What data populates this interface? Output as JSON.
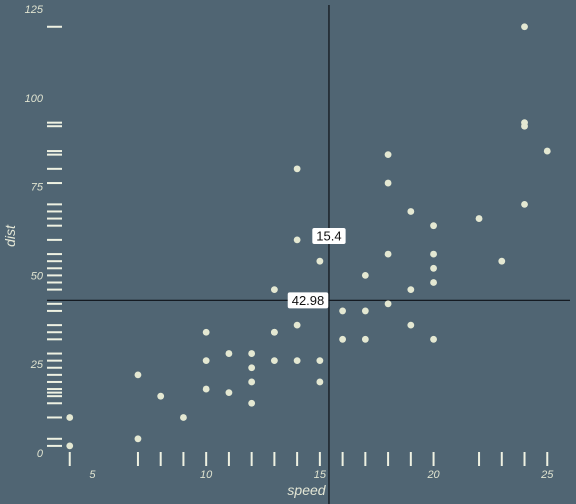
{
  "chart_data": {
    "type": "scatter",
    "xlabel": "speed",
    "ylabel": "dist",
    "xlim": [
      3,
      26
    ],
    "ylim": [
      0,
      125
    ],
    "x_ticks": [
      5,
      10,
      15,
      20,
      25
    ],
    "y_ticks": [
      0,
      25,
      50,
      75,
      100,
      125
    ],
    "grid": false,
    "rug": true,
    "reference_lines": {
      "vertical": 15.4,
      "horizontal": 42.98
    },
    "reference_labels": {
      "vertical": "15.4",
      "horizontal": "42.98"
    },
    "points": [
      [
        4,
        2
      ],
      [
        4,
        10
      ],
      [
        7,
        4
      ],
      [
        7,
        22
      ],
      [
        8,
        16
      ],
      [
        9,
        10
      ],
      [
        10,
        18
      ],
      [
        10,
        26
      ],
      [
        10,
        34
      ],
      [
        11,
        17
      ],
      [
        11,
        28
      ],
      [
        12,
        14
      ],
      [
        12,
        20
      ],
      [
        12,
        24
      ],
      [
        12,
        28
      ],
      [
        13,
        26
      ],
      [
        13,
        34
      ],
      [
        13,
        34
      ],
      [
        13,
        46
      ],
      [
        14,
        26
      ],
      [
        14,
        36
      ],
      [
        14,
        60
      ],
      [
        14,
        80
      ],
      [
        15,
        20
      ],
      [
        15,
        26
      ],
      [
        15,
        54
      ],
      [
        16,
        32
      ],
      [
        16,
        40
      ],
      [
        17,
        32
      ],
      [
        17,
        40
      ],
      [
        17,
        50
      ],
      [
        18,
        42
      ],
      [
        18,
        56
      ],
      [
        18,
        76
      ],
      [
        18,
        84
      ],
      [
        19,
        36
      ],
      [
        19,
        46
      ],
      [
        19,
        68
      ],
      [
        20,
        32
      ],
      [
        20,
        48
      ],
      [
        20,
        52
      ],
      [
        20,
        56
      ],
      [
        20,
        64
      ],
      [
        22,
        66
      ],
      [
        23,
        54
      ],
      [
        24,
        70
      ],
      [
        24,
        92
      ],
      [
        24,
        93
      ],
      [
        24,
        120
      ],
      [
        25,
        85
      ]
    ]
  },
  "colors": {
    "background": "#506573",
    "point": "#e4e8d2",
    "rug": "#eef1e2",
    "reference_line": "#0d1116",
    "label_bg": "#ffffff",
    "axis_text": "#dfe3d0"
  }
}
